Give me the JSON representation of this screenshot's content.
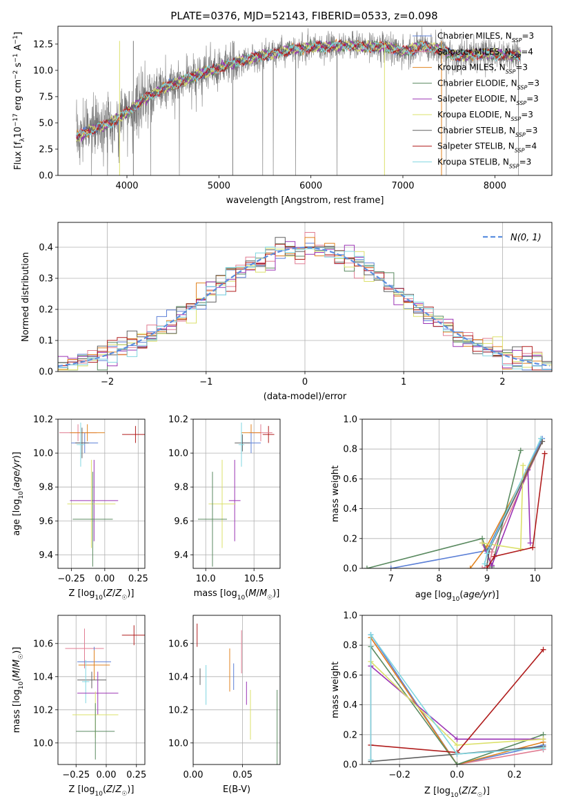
{
  "title": "PLATE=0376, MJD=52143, FIBERID=0533, z=0.098",
  "colors": {
    "Chabrier MILES": "#5b7fd6",
    "Salpeter MILES": "#e07b91",
    "Kroupa MILES": "#e0821e",
    "Chabrier ELODIE": "#5a8a60",
    "Salpeter ELODIE": "#9a32b4",
    "Kroupa ELODIE": "#dbe06a",
    "Chabrier STELIB": "#606060",
    "Salpeter STELIB": "#b01c1c",
    "Kroupa STELIB": "#7fd6e0"
  },
  "chart_data": [
    {
      "id": "spectrum",
      "type": "line",
      "xlabel": "wavelength [Angstrom, rest frame]",
      "ylabel": "Flux [f_λ 10^-17 erg cm^-2 s^-1 A^-1]",
      "xlim": [
        3250,
        8620
      ],
      "ylim": [
        0,
        14.2
      ],
      "xticks": [
        4000,
        5000,
        6000,
        7000,
        8000
      ],
      "yticks": [
        0.0,
        2.5,
        5.0,
        7.5,
        10.0,
        12.5
      ],
      "grid": false,
      "legend_position": "top-right",
      "data_range": [
        3450,
        8280
      ],
      "continuum": [
        [
          3450,
          3.6
        ],
        [
          3600,
          4.3
        ],
        [
          3800,
          4.9
        ],
        [
          4000,
          6.0
        ],
        [
          4200,
          7.3
        ],
        [
          4400,
          8.3
        ],
        [
          4600,
          9.0
        ],
        [
          4800,
          9.7
        ],
        [
          5000,
          10.2
        ],
        [
          5200,
          10.8
        ],
        [
          5400,
          11.3
        ],
        [
          5600,
          11.6
        ],
        [
          5800,
          12.0
        ],
        [
          6000,
          12.2
        ],
        [
          6200,
          12.3
        ],
        [
          6400,
          12.4
        ],
        [
          6600,
          12.2
        ],
        [
          6800,
          12.3
        ],
        [
          7000,
          11.8
        ],
        [
          7200,
          12.3
        ],
        [
          7400,
          12.0
        ],
        [
          7600,
          11.3
        ],
        [
          7800,
          11.6
        ],
        [
          8000,
          11.5
        ],
        [
          8280,
          11.4
        ]
      ],
      "series": [
        {
          "name": "Chabrier MILES, N_SSP=3",
          "label": "Chabrier MILES, N",
          "n_ssp": "3",
          "color": "#5b7fd6"
        },
        {
          "name": "Salpeter MILES, N_SSP=4",
          "label": "Salpeter MILES, N",
          "n_ssp": "4",
          "color": "#e07b91"
        },
        {
          "name": "Kroupa MILES, N_SSP=3",
          "label": "Kroupa MILES, N",
          "n_ssp": "3",
          "color": "#e0821e"
        },
        {
          "name": "Chabrier ELODIE, N_SSP=3",
          "label": "Chabrier ELODIE, N",
          "n_ssp": "3",
          "color": "#5a8a60"
        },
        {
          "name": "Salpeter ELODIE, N_SSP=3",
          "label": "Salpeter ELODIE, N",
          "n_ssp": "3",
          "color": "#9a32b4"
        },
        {
          "name": "Kroupa ELODIE, N_SSP=3",
          "label": "Kroupa ELODIE, N",
          "n_ssp": "3",
          "color": "#dbe06a"
        },
        {
          "name": "Chabrier STELIB, N_SSP=3",
          "label": "Chabrier STELIB, N",
          "n_ssp": "3",
          "color": "#606060"
        },
        {
          "name": "Salpeter STELIB, N_SSP=4",
          "label": "Salpeter STELIB, N",
          "n_ssp": "4",
          "color": "#b01c1c"
        },
        {
          "name": "Kroupa STELIB, N_SSP=3",
          "label": "Kroupa STELIB, N",
          "n_ssp": "3",
          "color": "#7fd6e0"
        }
      ],
      "legend_sub": "SSP"
    },
    {
      "id": "residuals",
      "type": "histogram",
      "xlabel": "(data-model)/error",
      "ylabel": "Normed distribution",
      "xlim": [
        -2.5,
        2.5
      ],
      "ylim": [
        0,
        0.48
      ],
      "xticks": [
        -2,
        -1,
        0,
        1,
        2
      ],
      "yticks": [
        0.0,
        0.1,
        0.2,
        0.3,
        0.4
      ],
      "grid": true,
      "legend_position": "top-right",
      "legend": "N(0, 1)",
      "bin_width": 0.1,
      "gaussian": {
        "mu": 0,
        "sigma": 1,
        "color": "#5b8ee0"
      }
    },
    {
      "id": "age_vs_Z",
      "type": "errorbar",
      "xlabel": "Z [log10(Z/Z☉)]",
      "ylabel": "age [log10(age/yr)]",
      "xlim": [
        -0.35,
        0.3
      ],
      "ylim": [
        9.32,
        10.2
      ],
      "xticks": [
        -0.25,
        0.0,
        0.25
      ],
      "yticks": [
        9.4,
        9.6,
        9.8,
        10.0,
        10.2
      ],
      "grid": true,
      "points": [
        {
          "model": "Salpeter MILES",
          "x": -0.2,
          "y": 10.12,
          "xerr": 0.14,
          "yerr": 0.05
        },
        {
          "model": "Kroupa MILES",
          "x": -0.13,
          "y": 10.12,
          "xerr": 0.13,
          "yerr": 0.05
        },
        {
          "model": "Chabrier MILES",
          "x": -0.15,
          "y": 10.06,
          "xerr": 0.1,
          "yerr": 0.06
        },
        {
          "model": "Salpeter STELIB",
          "x": 0.23,
          "y": 10.11,
          "xerr": 0.1,
          "yerr": 0.05
        },
        {
          "model": "Chabrier STELIB",
          "x": -0.17,
          "y": 10.06,
          "xerr": 0.05,
          "yerr": 0.09
        },
        {
          "model": "Kroupa STELIB",
          "x": -0.18,
          "y": 10.05,
          "xerr": 0.03,
          "yerr": 0.13
        },
        {
          "model": "Salpeter ELODIE",
          "x": -0.08,
          "y": 9.72,
          "xerr": 0.18,
          "yerr": 0.24
        },
        {
          "model": "Kroupa ELODIE",
          "x": -0.1,
          "y": 9.7,
          "xerr": 0.18,
          "yerr": 0.26
        },
        {
          "model": "Chabrier ELODIE",
          "x": -0.09,
          "y": 9.61,
          "xerr": 0.15,
          "yerr": 0.28
        }
      ]
    },
    {
      "id": "age_vs_mass",
      "type": "errorbar",
      "xlabel": "mass [log10(M/M☉)]",
      "ylabel": "",
      "xlim": [
        9.87,
        10.77
      ],
      "ylim": [
        9.32,
        10.2
      ],
      "xticks": [
        10.0,
        10.5
      ],
      "yticks": [
        9.4,
        9.6,
        9.8,
        10.0,
        10.2
      ],
      "grid": true,
      "points": [
        {
          "model": "Salpeter STELIB",
          "x": 10.65,
          "y": 10.11,
          "xerr": 0.06,
          "yerr": 0.05
        },
        {
          "model": "Salpeter MILES",
          "x": 10.57,
          "y": 10.12,
          "xerr": 0.12,
          "yerr": 0.05
        },
        {
          "model": "Kroupa MILES",
          "x": 10.47,
          "y": 10.12,
          "xerr": 0.1,
          "yerr": 0.05
        },
        {
          "model": "Chabrier MILES",
          "x": 10.47,
          "y": 10.06,
          "xerr": 0.1,
          "yerr": 0.06
        },
        {
          "model": "Chabrier STELIB",
          "x": 10.38,
          "y": 10.06,
          "xerr": 0.08,
          "yerr": 0.05
        },
        {
          "model": "Kroupa STELIB",
          "x": 10.37,
          "y": 10.05,
          "xerr": 0.03,
          "yerr": 0.13
        },
        {
          "model": "Salpeter ELODIE",
          "x": 10.3,
          "y": 9.72,
          "xerr": 0.06,
          "yerr": 0.24
        },
        {
          "model": "Kroupa ELODIE",
          "x": 10.17,
          "y": 9.7,
          "xerr": 0.14,
          "yerr": 0.26
        },
        {
          "model": "Chabrier ELODIE",
          "x": 10.07,
          "y": 9.61,
          "xerr": 0.15,
          "yerr": 0.28
        }
      ]
    },
    {
      "id": "weight_vs_age",
      "type": "line",
      "xlabel": "age [log10(age/yr)]",
      "ylabel": "mass weight",
      "xlim": [
        6.4,
        10.35
      ],
      "ylim": [
        0,
        1.0
      ],
      "xticks": [
        7,
        8,
        9,
        10
      ],
      "yticks": [
        0.0,
        0.2,
        0.4,
        0.6,
        0.8,
        1.0
      ],
      "grid": true,
      "series": [
        {
          "model": "Chabrier MILES",
          "x": [
            7.0,
            9.0,
            10.15
          ],
          "y": [
            0.0,
            0.12,
            0.87
          ]
        },
        {
          "model": "Salpeter MILES",
          "x": [
            8.9,
            9.05,
            9.1,
            10.15
          ],
          "y": [
            0.0,
            0.02,
            0.11,
            0.85
          ]
        },
        {
          "model": "Kroupa MILES",
          "x": [
            8.65,
            9.0,
            10.15
          ],
          "y": [
            0.0,
            0.15,
            0.85
          ]
        },
        {
          "model": "Chabrier ELODIE",
          "x": [
            6.5,
            8.9,
            9.1,
            9.7
          ],
          "y": [
            0.0,
            0.2,
            0.01,
            0.79
          ]
        },
        {
          "model": "Salpeter ELODIE",
          "x": [
            8.9,
            9.1,
            9.85,
            9.9
          ],
          "y": [
            0.17,
            0.02,
            0.66,
            0.17
          ]
        },
        {
          "model": "Kroupa ELODIE",
          "x": [
            8.9,
            9.7,
            9.75
          ],
          "y": [
            0.17,
            0.13,
            0.69
          ]
        },
        {
          "model": "Chabrier STELIB",
          "x": [
            9.0,
            9.05,
            10.15
          ],
          "y": [
            0.02,
            0.13,
            0.85
          ]
        },
        {
          "model": "Salpeter STELIB",
          "x": [
            9.0,
            9.15,
            9.95,
            10.2
          ],
          "y": [
            0.0,
            0.08,
            0.14,
            0.77
          ]
        },
        {
          "model": "Kroupa STELIB",
          "x": [
            8.95,
            9.0,
            10.12
          ],
          "y": [
            0.03,
            0.1,
            0.87
          ]
        }
      ]
    },
    {
      "id": "mass_vs_Z",
      "type": "errorbar",
      "xlabel": "Z [log10(Z/Z☉)]",
      "ylabel": "mass [log10(M/M☉)]",
      "xlim": [
        -0.4,
        0.32
      ],
      "ylim": [
        9.87,
        10.77
      ],
      "xticks": [
        -0.25,
        0.0,
        0.25
      ],
      "yticks": [
        10.0,
        10.2,
        10.4,
        10.6
      ],
      "grid": true,
      "points": [
        {
          "model": "Salpeter STELIB",
          "x": 0.23,
          "y": 10.65,
          "xerr": 0.1,
          "yerr": 0.06
        },
        {
          "model": "Salpeter MILES",
          "x": -0.18,
          "y": 10.57,
          "xerr": 0.16,
          "yerr": 0.12
        },
        {
          "model": "Chabrier MILES",
          "x": -0.1,
          "y": 10.49,
          "xerr": 0.14,
          "yerr": 0.09
        },
        {
          "model": "Kroupa MILES",
          "x": -0.1,
          "y": 10.47,
          "xerr": 0.13,
          "yerr": 0.09
        },
        {
          "model": "Chabrier STELIB",
          "x": -0.12,
          "y": 10.38,
          "xerr": 0.12,
          "yerr": 0.05
        },
        {
          "model": "Kroupa STELIB",
          "x": -0.17,
          "y": 10.37,
          "xerr": 0.03,
          "yerr": 0.13
        },
        {
          "model": "Salpeter ELODIE",
          "x": -0.07,
          "y": 10.3,
          "xerr": 0.17,
          "yerr": 0.13
        },
        {
          "model": "Kroupa ELODIE",
          "x": -0.09,
          "y": 10.17,
          "xerr": 0.19,
          "yerr": 0.14
        },
        {
          "model": "Chabrier ELODIE",
          "x": -0.09,
          "y": 10.07,
          "xerr": 0.16,
          "yerr": 0.17
        }
      ]
    },
    {
      "id": "mass_vs_EBV",
      "type": "errorbar",
      "xlabel": "E(B-V)",
      "ylabel": "",
      "xlim": [
        0.0,
        0.088
      ],
      "ylim": [
        9.87,
        10.77
      ],
      "xticks": [
        0.0,
        0.05
      ],
      "yticks": [
        10.0,
        10.2,
        10.4,
        10.6
      ],
      "grid": true,
      "points": [
        {
          "model": "Salpeter STELIB",
          "x": 0.004,
          "y": 10.65,
          "xerr": 0,
          "yerr": 0.07
        },
        {
          "model": "Chabrier STELIB",
          "x": 0.007,
          "y": 10.4,
          "xerr": 0,
          "yerr": 0.05
        },
        {
          "model": "Kroupa STELIB",
          "x": 0.013,
          "y": 10.35,
          "xerr": 0,
          "yerr": 0.12
        },
        {
          "model": "Kroupa MILES",
          "x": 0.037,
          "y": 10.44,
          "xerr": 0,
          "yerr": 0.13
        },
        {
          "model": "Chabrier MILES",
          "x": 0.041,
          "y": 10.4,
          "xerr": 0,
          "yerr": 0.08
        },
        {
          "model": "Salpeter MILES",
          "x": 0.049,
          "y": 10.55,
          "xerr": 0,
          "yerr": 0.13
        },
        {
          "model": "Salpeter ELODIE",
          "x": 0.054,
          "y": 10.3,
          "xerr": 0,
          "yerr": 0.07
        },
        {
          "model": "Kroupa ELODIE",
          "x": 0.058,
          "y": 10.17,
          "xerr": 0,
          "yerr": 0.15
        },
        {
          "model": "Chabrier ELODIE",
          "x": 0.085,
          "y": 10.07,
          "xerr": 0,
          "yerr": 0.25
        }
      ]
    },
    {
      "id": "weight_vs_Z",
      "type": "line",
      "xlabel": "Z [log10(Z/Z☉)]",
      "ylabel": "mass weight",
      "xlim": [
        -0.33,
        0.33
      ],
      "ylim": [
        0,
        1.0
      ],
      "xticks": [
        -0.2,
        0.0,
        0.2
      ],
      "yticks": [
        0.0,
        0.2,
        0.4,
        0.6,
        0.8,
        1.0
      ],
      "grid": true,
      "series": [
        {
          "model": "Chabrier MILES",
          "x": [
            -0.3,
            0.0,
            0.3
          ],
          "y": [
            0.87,
            0.0,
            0.13
          ]
        },
        {
          "model": "Salpeter MILES",
          "x": [
            -0.3,
            -0.3,
            0.0,
            0.3
          ],
          "y": [
            0.03,
            0.85,
            0.0,
            0.1
          ]
        },
        {
          "model": "Kroupa MILES",
          "x": [
            -0.3,
            0.0,
            0.3
          ],
          "y": [
            0.85,
            0.0,
            0.15
          ]
        },
        {
          "model": "Chabrier ELODIE",
          "x": [
            -0.3,
            0.0,
            0.3
          ],
          "y": [
            0.79,
            0.0,
            0.2
          ]
        },
        {
          "model": "Salpeter ELODIE",
          "x": [
            -0.3,
            0.0,
            0.3
          ],
          "y": [
            0.66,
            0.17,
            0.17
          ]
        },
        {
          "model": "Kroupa ELODIE",
          "x": [
            -0.3,
            0.0,
            0.3
          ],
          "y": [
            0.69,
            0.13,
            0.17
          ]
        },
        {
          "model": "Chabrier STELIB",
          "x": [
            -0.3,
            0.0,
            0.3
          ],
          "y": [
            0.02,
            0.07,
            0.12
          ]
        },
        {
          "model": "Salpeter STELIB",
          "x": [
            -0.3,
            0.0,
            0.3
          ],
          "y": [
            0.13,
            0.08,
            0.77
          ]
        },
        {
          "model": "Kroupa STELIB",
          "x": [
            -0.3,
            -0.3,
            0.0,
            0.3
          ],
          "y": [
            0.03,
            0.87,
            0.07,
            0.11
          ]
        }
      ]
    }
  ]
}
